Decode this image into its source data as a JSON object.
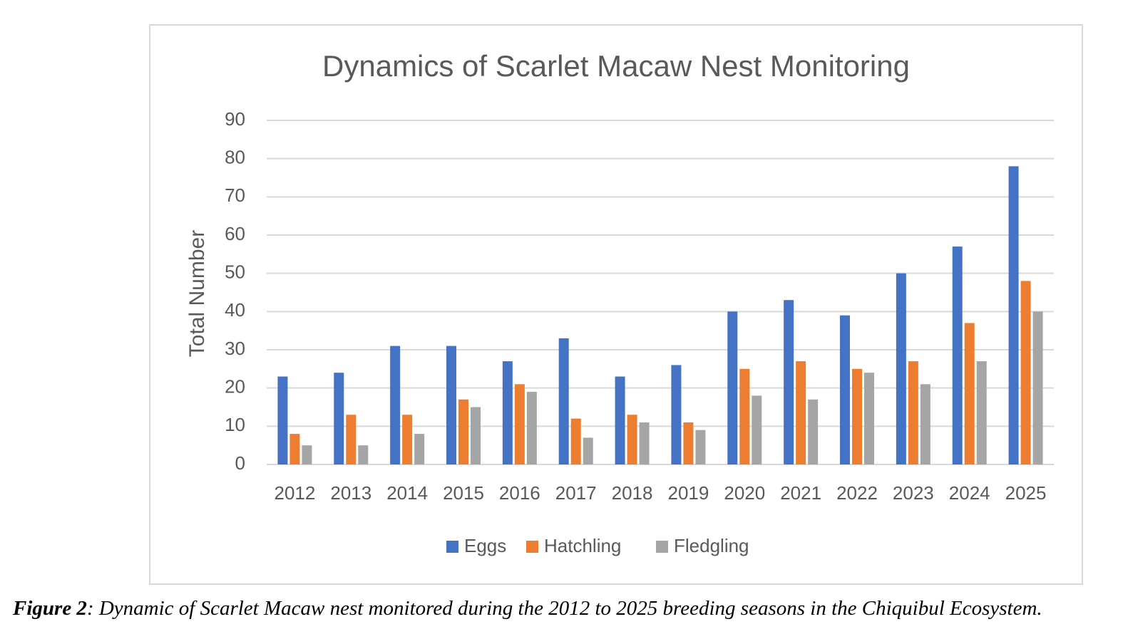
{
  "chart_data": {
    "type": "bar",
    "title": "Dynamics of Scarlet Macaw Nest Monitoring",
    "y_label": "Total Number",
    "categories": [
      "2012",
      "2013",
      "2014",
      "2015",
      "2016",
      "2017",
      "2018",
      "2019",
      "2020",
      "2021",
      "2022",
      "2023",
      "2024",
      "2025"
    ],
    "series": [
      {
        "name": "Eggs",
        "color": "#4472c4",
        "values": [
          23,
          24,
          31,
          31,
          27,
          33,
          23,
          26,
          40,
          43,
          39,
          50,
          57,
          78
        ]
      },
      {
        "name": "Hatchling",
        "color": "#ed7d31",
        "values": [
          8,
          13,
          13,
          17,
          21,
          12,
          13,
          11,
          25,
          27,
          25,
          27,
          37,
          48
        ]
      },
      {
        "name": "Fledgling",
        "color": "#a5a5a5",
        "values": [
          5,
          5,
          8,
          15,
          19,
          7,
          11,
          9,
          18,
          17,
          24,
          21,
          27,
          40
        ]
      }
    ],
    "ylim": [
      0,
      90
    ],
    "yticks": [
      0,
      10,
      20,
      30,
      40,
      50,
      60,
      70,
      80,
      90
    ],
    "grid": true,
    "legend": "bottom"
  },
  "caption": {
    "label": "Figure 2",
    "text": ":  Dynamic of Scarlet Macaw nest monitored during the 2012 to 2025 breeding seasons in the Chiquibul Ecosystem."
  }
}
